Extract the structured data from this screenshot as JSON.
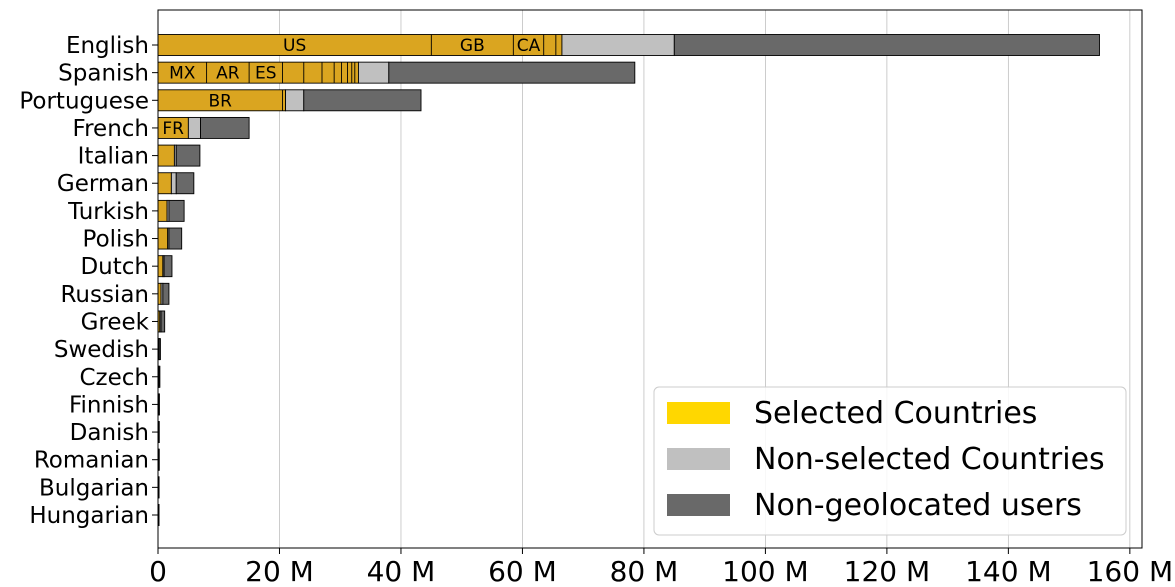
{
  "chart_data": {
    "type": "bar",
    "orientation": "horizontal",
    "stacked": true,
    "xlim": [
      0,
      162
    ],
    "x_ticks": [
      0,
      20,
      40,
      60,
      80,
      100,
      120,
      140,
      160
    ],
    "x_tick_labels": [
      "0",
      "20 M",
      "40 M",
      "60 M",
      "80 M",
      "100 M",
      "120 M",
      "140 M",
      "160 M"
    ],
    "grid": "vertical",
    "legend_position": "bottom-right",
    "categories": [
      "English",
      "Spanish",
      "Portuguese",
      "French",
      "Italian",
      "German",
      "Turkish",
      "Polish",
      "Dutch",
      "Russian",
      "Greek",
      "Swedish",
      "Czech",
      "Finnish",
      "Danish",
      "Romanian",
      "Bulgarian",
      "Hungarian"
    ],
    "series": [
      {
        "name": "Selected Countries",
        "color": "#DAA520",
        "values": [
          66.5,
          33,
          21,
          5,
          2.7,
          2.2,
          1.5,
          1.6,
          0.8,
          0.5,
          0.3,
          0.15,
          0.12,
          0.1,
          0.08,
          0.08,
          0.06,
          0.05
        ]
      },
      {
        "name": "Non-selected Countries",
        "color": "#C0C0C0",
        "values": [
          18.5,
          5,
          3,
          2,
          0.3,
          0.8,
          0.3,
          0.2,
          0.2,
          0.3,
          0.2,
          0.05,
          0.04,
          0.03,
          0.03,
          0.03,
          0.02,
          0.02
        ]
      },
      {
        "name": "Non-geolocated users",
        "color": "#696969",
        "values": [
          70,
          40.5,
          19.3,
          8,
          3.9,
          2.9,
          2.5,
          2.1,
          1.3,
          1.0,
          0.6,
          0.2,
          0.15,
          0.1,
          0.08,
          0.08,
          0.06,
          0.05
        ]
      }
    ],
    "country_segments": {
      "English": [
        {
          "label": "US",
          "value": 45
        },
        {
          "label": "GB",
          "value": 13.5
        },
        {
          "label": "CA",
          "value": 5
        },
        {
          "label": "",
          "value": 2
        },
        {
          "label": "",
          "value": 1
        }
      ],
      "Spanish": [
        {
          "label": "MX",
          "value": 8
        },
        {
          "label": "AR",
          "value": 7
        },
        {
          "label": "ES",
          "value": 5.5
        },
        {
          "label": "",
          "value": 3.5
        },
        {
          "label": "",
          "value": 3
        },
        {
          "label": "",
          "value": 2
        },
        {
          "label": "",
          "value": 1.2
        },
        {
          "label": "",
          "value": 1
        },
        {
          "label": "",
          "value": 0.7
        },
        {
          "label": "",
          "value": 0.5
        },
        {
          "label": "",
          "value": 0.6
        }
      ],
      "Portuguese": [
        {
          "label": "BR",
          "value": 20.5
        },
        {
          "label": "",
          "value": 0.5
        }
      ],
      "French": [
        {
          "label": "FR",
          "value": 5
        }
      ]
    },
    "legend_swatch_colors": [
      "#FFD700",
      "#C0C0C0",
      "#696969"
    ]
  }
}
